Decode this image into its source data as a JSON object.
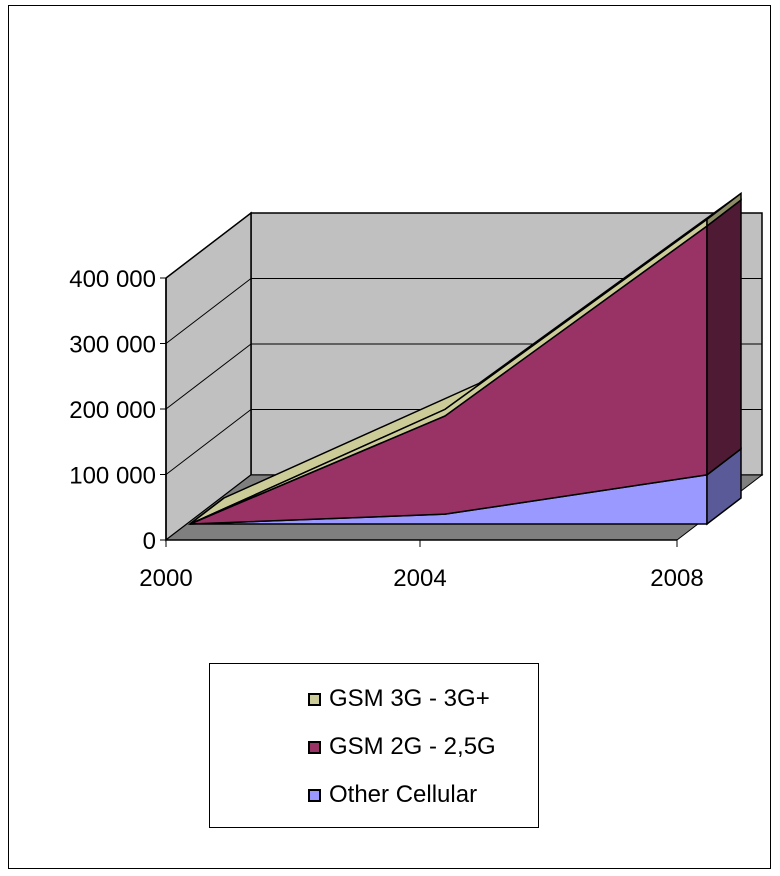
{
  "chart_data": {
    "type": "area",
    "style": "3d-stacked-area",
    "categories": [
      "2000",
      "2004",
      "2008"
    ],
    "y_ticks": [
      "0",
      "100 000",
      "200 000",
      "300 000",
      "400 000"
    ],
    "ylim": [
      0,
      400000
    ],
    "grid": true,
    "legend_position": "bottom",
    "series": [
      {
        "name": "Other Cellular",
        "values": [
          0,
          15000,
          75000
        ],
        "color": "#9999ff",
        "side_color": "#5a5a99"
      },
      {
        "name": "GSM 2G - 2,5G",
        "values": [
          0,
          150000,
          380000
        ],
        "color": "#993366",
        "side_color": "#4f1a33"
      },
      {
        "name": "GSM 3G - 3G+",
        "values": [
          0,
          10000,
          10000
        ],
        "color": "#cccc99",
        "side_color": "#8c8c66"
      }
    ],
    "colors": {
      "wall": "#c0c0c0",
      "floor": "#7f7f7f"
    }
  }
}
